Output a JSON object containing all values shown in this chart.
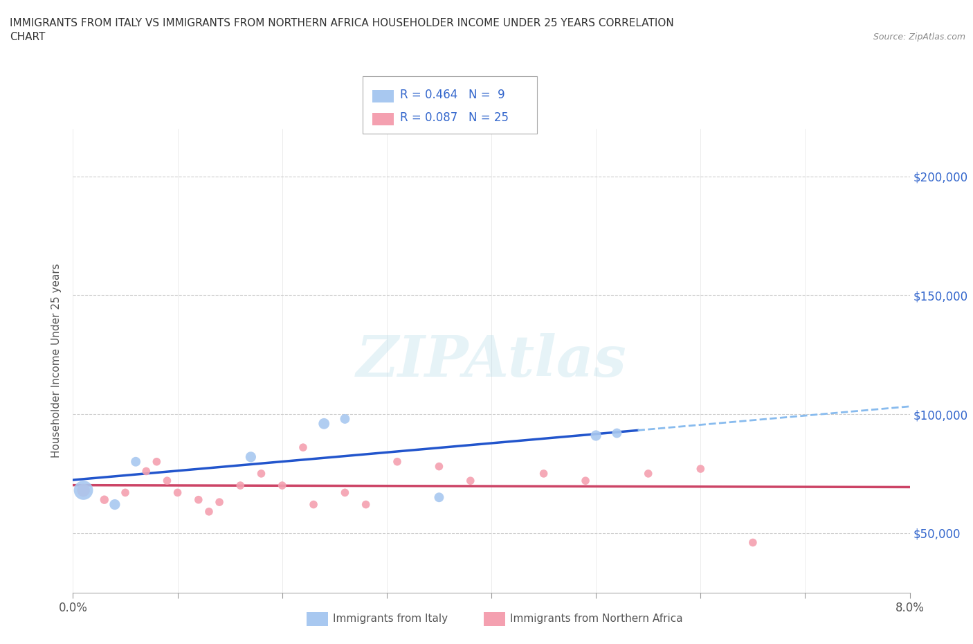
{
  "title_line1": "IMMIGRANTS FROM ITALY VS IMMIGRANTS FROM NORTHERN AFRICA HOUSEHOLDER INCOME UNDER 25 YEARS CORRELATION",
  "title_line2": "CHART",
  "source": "Source: ZipAtlas.com",
  "ylabel": "Householder Income Under 25 years",
  "xlim": [
    0.0,
    0.08
  ],
  "ylim": [
    25000,
    220000
  ],
  "xticks": [
    0.0,
    0.01,
    0.02,
    0.03,
    0.04,
    0.05,
    0.06,
    0.07,
    0.08
  ],
  "yticks": [
    50000,
    100000,
    150000,
    200000
  ],
  "ytick_labels": [
    "$50,000",
    "$100,000",
    "$150,000",
    "$200,000"
  ],
  "italy_color": "#a8c8f0",
  "italy_line_color": "#2255cc",
  "italy_dash_color": "#88bbee",
  "northern_africa_color": "#f4a0b0",
  "northern_africa_line_color": "#cc4466",
  "R_italy": 0.464,
  "N_italy": 9,
  "R_northern_africa": 0.087,
  "N_northern_africa": 25,
  "legend_label_italy": "Immigrants from Italy",
  "legend_label_northern_africa": "Immigrants from Northern Africa",
  "watermark": "ZIPAtlas",
  "italy_x": [
    0.001,
    0.004,
    0.006,
    0.017,
    0.024,
    0.026,
    0.035,
    0.05,
    0.052
  ],
  "italy_y": [
    68000,
    62000,
    80000,
    82000,
    96000,
    98000,
    65000,
    91000,
    92000
  ],
  "italy_sizes": [
    400,
    120,
    100,
    120,
    130,
    100,
    100,
    120,
    100
  ],
  "northern_africa_x": [
    0.001,
    0.003,
    0.005,
    0.007,
    0.008,
    0.009,
    0.01,
    0.012,
    0.013,
    0.014,
    0.016,
    0.018,
    0.02,
    0.022,
    0.023,
    0.026,
    0.028,
    0.031,
    0.035,
    0.038,
    0.045,
    0.049,
    0.055,
    0.06,
    0.065
  ],
  "northern_africa_y": [
    68000,
    64000,
    67000,
    76000,
    80000,
    72000,
    67000,
    64000,
    59000,
    63000,
    70000,
    75000,
    70000,
    86000,
    62000,
    67000,
    62000,
    80000,
    78000,
    72000,
    75000,
    72000,
    75000,
    77000,
    46000
  ],
  "northern_africa_sizes": [
    180,
    80,
    70,
    70,
    70,
    70,
    70,
    70,
    70,
    70,
    70,
    70,
    70,
    70,
    70,
    70,
    70,
    70,
    70,
    70,
    70,
    70,
    70,
    70,
    70
  ],
  "grid_color": "#cccccc",
  "background_color": "#ffffff",
  "title_color": "#333333",
  "axis_label_color": "#555555",
  "tick_color_right": "#3366cc",
  "legend_R_color": "#3366cc",
  "legend_N_color": "#3366cc"
}
